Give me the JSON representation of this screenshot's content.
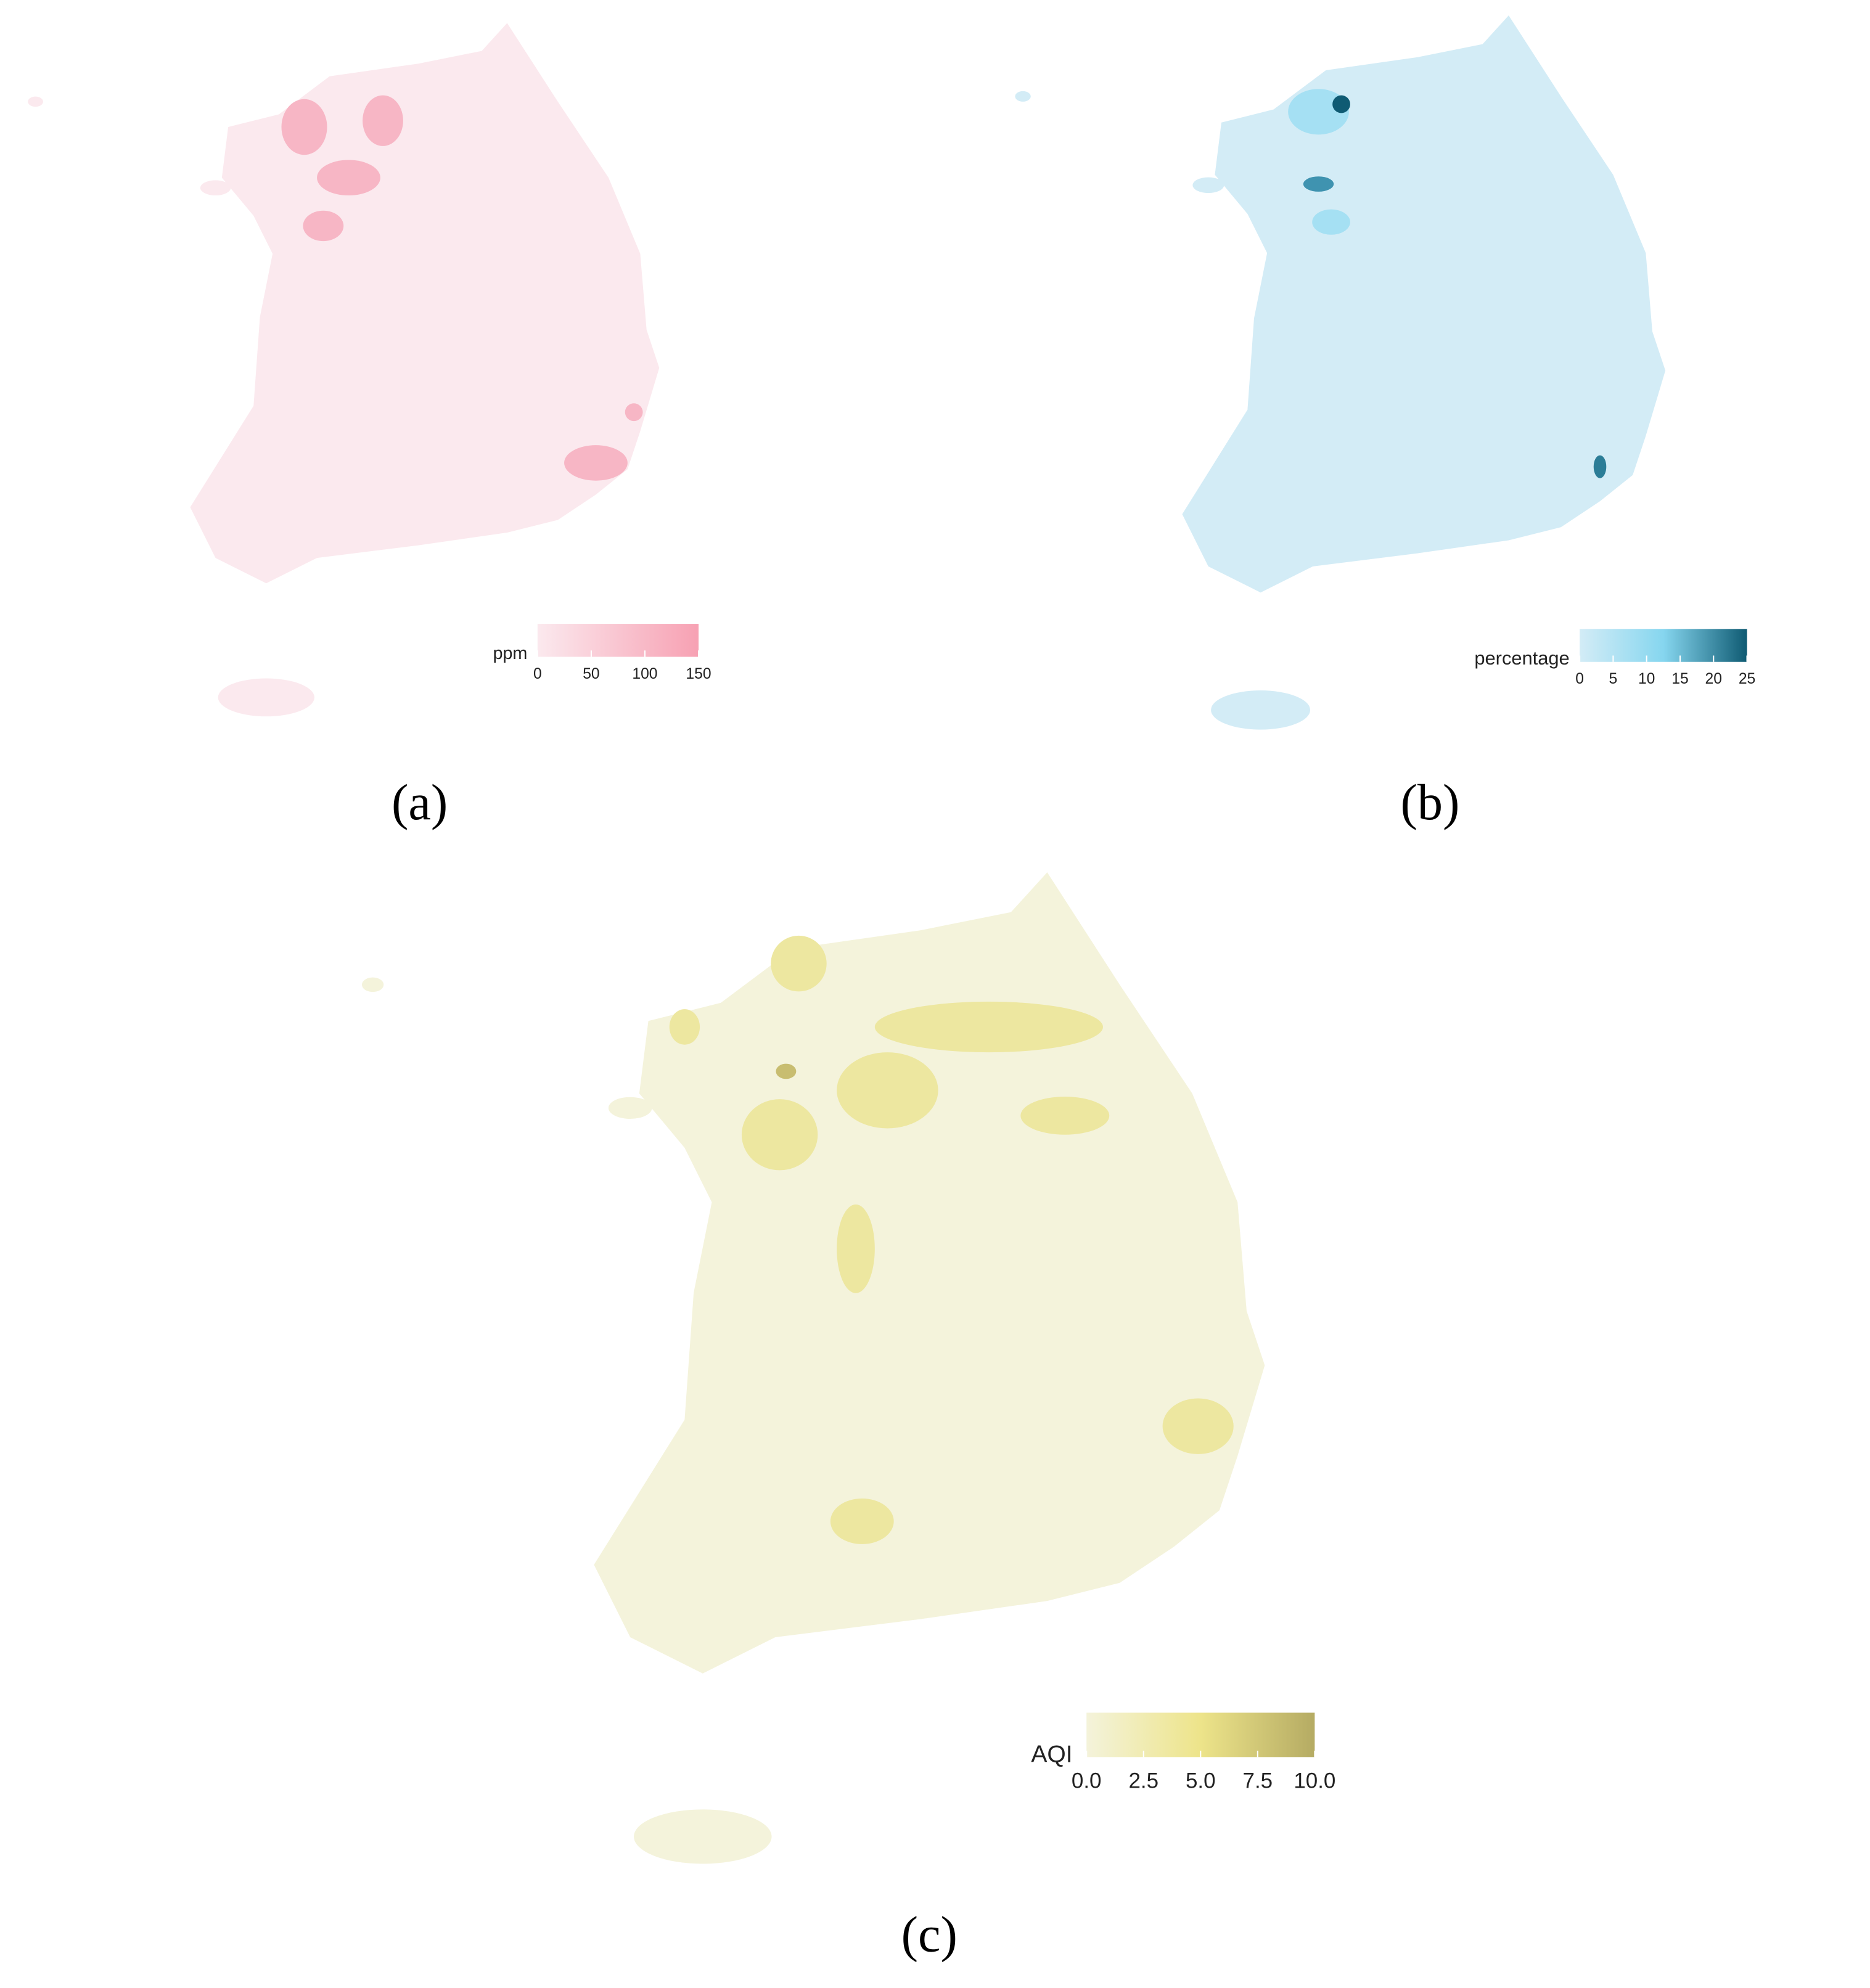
{
  "panels": [
    {
      "label": "(a)",
      "legend": {
        "title": "ppm",
        "lim": [
          0,
          150
        ],
        "ticks": [
          0,
          50,
          100,
          150
        ],
        "colors": [
          "#fbe9ee",
          "#f7a1b3"
        ]
      }
    },
    {
      "label": "(b)",
      "legend": {
        "title": "percentage",
        "lim": [
          0,
          25
        ],
        "ticks": [
          0,
          5,
          10,
          15,
          20,
          25
        ],
        "colors": [
          "#d3ecf6",
          "#86d6ef",
          "#0f5b73"
        ]
      }
    },
    {
      "label": "(c)",
      "legend": {
        "title": "AQI",
        "lim": [
          0,
          10
        ],
        "ticks": [
          {
            "value": 0,
            "label": "0.0"
          },
          {
            "value": 2.5,
            "label": "2.5"
          },
          {
            "value": 5,
            "label": "5.0"
          },
          {
            "value": 7.5,
            "label": "7.5"
          },
          {
            "value": 10,
            "label": "10.0"
          }
        ],
        "colors": [
          "#f4f3db",
          "#ede48a",
          "#b5ab63"
        ]
      }
    }
  ]
}
